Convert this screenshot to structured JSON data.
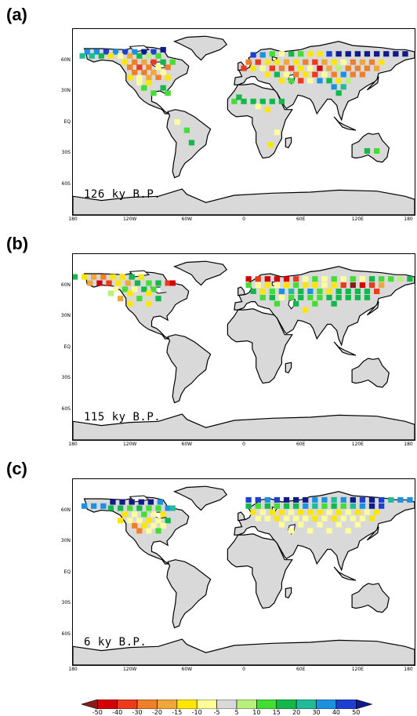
{
  "chart_data": [
    {
      "type": "heatmap",
      "panel": "(a)",
      "annotation": "126 ky B.P.",
      "lat_ticks": [
        "60N",
        "30N",
        "EQ",
        "30S",
        "60S"
      ],
      "lon_ticks": [
        "180",
        "120W",
        "60W",
        "0",
        "60E",
        "120E",
        "180"
      ]
    },
    {
      "type": "heatmap",
      "panel": "(b)",
      "annotation": "115 ky B.P.",
      "lat_ticks": [
        "60N",
        "30N",
        "EQ",
        "30S",
        "60S"
      ],
      "lon_ticks": [
        "180",
        "120W",
        "60W",
        "0",
        "60E",
        "120E",
        "180"
      ]
    },
    {
      "type": "heatmap",
      "panel": "(c)",
      "annotation": "6 ky B.P.",
      "lat_ticks": [
        "60N",
        "30N",
        "EQ",
        "30S",
        "60S"
      ],
      "lon_ticks": [
        "180",
        "120W",
        "60W",
        "0",
        "60E",
        "120E",
        "180"
      ]
    }
  ],
  "colorbar": {
    "levels": [
      "-50",
      "-40",
      "-30",
      "-20",
      "-15",
      "-10",
      "-5",
      "5",
      "10",
      "15",
      "20",
      "30",
      "40",
      "50"
    ],
    "colors": [
      "#8b1a1a",
      "#d40000",
      "#ee3a1c",
      "#f07f2a",
      "#f0a73a",
      "#ffe600",
      "#ffff99",
      "#d9d9d9",
      "#b7f07a",
      "#44dd33",
      "#12b84a",
      "#22bb9a",
      "#1d90e0",
      "#1f3fd0",
      "#101a8a"
    ]
  }
}
